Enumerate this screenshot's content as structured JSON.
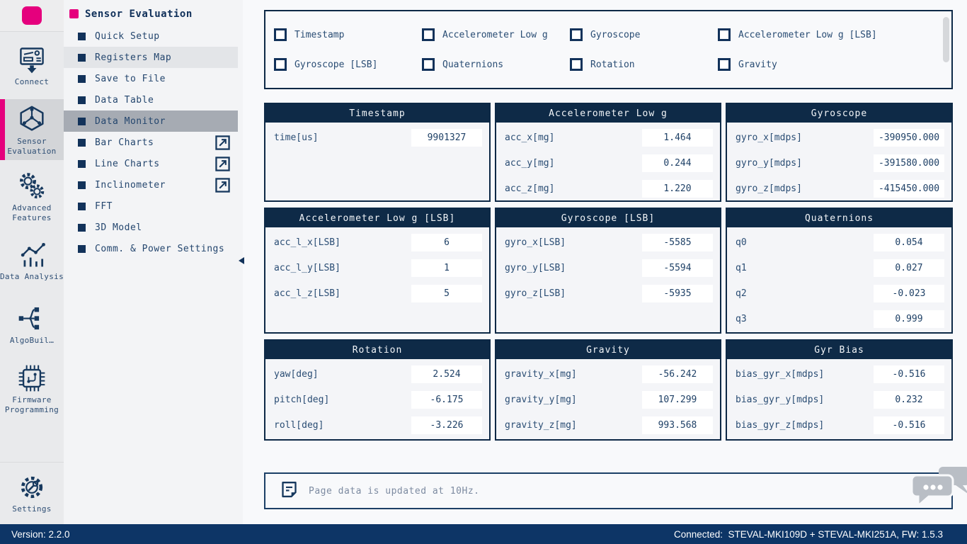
{
  "rail": {
    "items": [
      {
        "label": "Connect",
        "icon": "connect-icon",
        "selected": false
      },
      {
        "label": "Sensor Evaluation",
        "icon": "sensor-evaluation-icon",
        "selected": true
      },
      {
        "label": "Advanced Features",
        "icon": "advanced-features-icon",
        "selected": false
      },
      {
        "label": "Data Analysis",
        "icon": "data-analysis-icon",
        "selected": false
      },
      {
        "label": "AlgoBuil…",
        "icon": "algobuilder-icon",
        "selected": false
      },
      {
        "label": "Firmware Programming",
        "icon": "firmware-programming-icon",
        "selected": false
      },
      {
        "label": "Settings",
        "icon": "settings-icon",
        "selected": false,
        "section": "bottom"
      }
    ]
  },
  "sidebar": {
    "title": "Sensor Evaluation",
    "items": [
      {
        "label": "Quick Setup",
        "highlight": "none",
        "external": false
      },
      {
        "label": "Registers Map",
        "highlight": "hover",
        "external": false
      },
      {
        "label": "Save to File",
        "highlight": "none",
        "external": false
      },
      {
        "label": "Data Table",
        "highlight": "none",
        "external": false
      },
      {
        "label": "Data Monitor",
        "highlight": "selected",
        "external": false
      },
      {
        "label": "Bar Charts",
        "highlight": "none",
        "external": true
      },
      {
        "label": "Line Charts",
        "highlight": "none",
        "external": true
      },
      {
        "label": "Inclinometer",
        "highlight": "none",
        "external": true
      },
      {
        "label": "FFT",
        "highlight": "none",
        "external": false
      },
      {
        "label": "3D Model",
        "highlight": "none",
        "external": false
      },
      {
        "label": "Comm. & Power Settings",
        "highlight": "none",
        "external": false
      }
    ]
  },
  "signal_toggles": {
    "items": [
      {
        "label": "Timestamp",
        "checked": true
      },
      {
        "label": "Accelerometer Low g",
        "checked": true
      },
      {
        "label": "Gyroscope",
        "checked": true
      },
      {
        "label": "Accelerometer Low g [LSB]",
        "checked": true
      },
      {
        "label": "Gyroscope [LSB]",
        "checked": true
      },
      {
        "label": "Quaternions",
        "checked": true
      },
      {
        "label": "Rotation",
        "checked": true
      },
      {
        "label": "Gravity",
        "checked": true
      }
    ]
  },
  "cards": [
    {
      "title": "Timestamp",
      "rows": [
        {
          "label": "time[us]",
          "value": "9901327"
        }
      ]
    },
    {
      "title": "Accelerometer Low g",
      "rows": [
        {
          "label": "acc_x[mg]",
          "value": "1.464"
        },
        {
          "label": "acc_y[mg]",
          "value": "0.244"
        },
        {
          "label": "acc_z[mg]",
          "value": "1.220"
        }
      ]
    },
    {
      "title": "Gyroscope",
      "rows": [
        {
          "label": "gyro_x[mdps]",
          "value": "-390950.000"
        },
        {
          "label": "gyro_y[mdps]",
          "value": "-391580.000"
        },
        {
          "label": "gyro_z[mdps]",
          "value": "-415450.000"
        }
      ]
    },
    {
      "title": "Accelerometer Low g [LSB]",
      "rows": [
        {
          "label": "acc_l_x[LSB]",
          "value": "6"
        },
        {
          "label": "acc_l_y[LSB]",
          "value": "1"
        },
        {
          "label": "acc_l_z[LSB]",
          "value": "5"
        }
      ]
    },
    {
      "title": "Gyroscope [LSB]",
      "rows": [
        {
          "label": "gyro_x[LSB]",
          "value": "-5585"
        },
        {
          "label": "gyro_y[LSB]",
          "value": "-5594"
        },
        {
          "label": "gyro_z[LSB]",
          "value": "-5935"
        }
      ]
    },
    {
      "title": "Quaternions",
      "rows": [
        {
          "label": "q0",
          "value": "0.054"
        },
        {
          "label": "q1",
          "value": "0.027"
        },
        {
          "label": "q2",
          "value": "-0.023"
        },
        {
          "label": "q3",
          "value": "0.999"
        }
      ]
    },
    {
      "title": "Rotation",
      "rows": [
        {
          "label": "yaw[deg]",
          "value": "2.524"
        },
        {
          "label": "pitch[deg]",
          "value": "-6.175"
        },
        {
          "label": "roll[deg]",
          "value": "-3.226"
        }
      ]
    },
    {
      "title": "Gravity",
      "rows": [
        {
          "label": "gravity_x[mg]",
          "value": "-56.242"
        },
        {
          "label": "gravity_y[mg]",
          "value": "107.299"
        },
        {
          "label": "gravity_z[mg]",
          "value": "993.568"
        }
      ]
    },
    {
      "title": "Gyr Bias",
      "rows": [
        {
          "label": "bias_gyr_x[mdps]",
          "value": "-0.516"
        },
        {
          "label": "bias_gyr_y[mdps]",
          "value": "0.232"
        },
        {
          "label": "bias_gyr_z[mdps]",
          "value": "-0.516"
        }
      ]
    }
  ],
  "note": {
    "text": "Page data is updated at 10Hz."
  },
  "statusbar": {
    "version": "Version: 2.2.0",
    "connection": "Connected:  STEVAL-MKI109D + STEVAL-MKI251A, FW: 1.5.3"
  },
  "colors": {
    "navy": "#0e2a47",
    "pink": "#e5007d",
    "statusbar_bg": "#0d3566",
    "selected_menu_bg": "#a6abb3"
  }
}
